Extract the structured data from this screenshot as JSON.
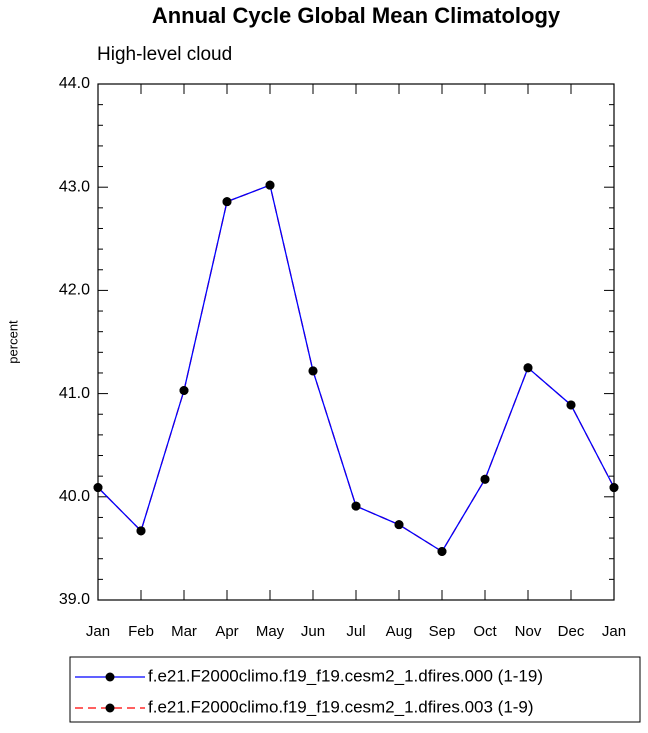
{
  "chart_data": {
    "type": "line",
    "title": "Annual Cycle Global Mean Climatology",
    "subtitle": "High-level cloud",
    "ylabel": "percent",
    "categories": [
      "Jan",
      "Feb",
      "Mar",
      "Apr",
      "May",
      "Jun",
      "Jul",
      "Aug",
      "Sep",
      "Oct",
      "Nov",
      "Dec",
      "Jan"
    ],
    "series": [
      {
        "name": "f.e21.F2000climo.f19_f19.cesm2_1.dfires.000 (1-19)",
        "color": "#0000ff",
        "line_style": "solid",
        "marker_color": "#000000",
        "values": [
          40.09,
          39.67,
          41.03,
          42.86,
          43.02,
          41.22,
          39.91,
          39.73,
          39.47,
          40.17,
          41.25,
          40.89,
          40.09
        ]
      },
      {
        "name": "f.e21.F2000climo.f19_f19.cesm2_1.dfires.003 (1-9)",
        "color": "#ff0000",
        "line_style": "dashed",
        "marker_color": "#000000",
        "values": [
          40.09,
          39.67,
          41.03,
          42.86,
          43.02,
          41.22,
          39.91,
          39.73,
          39.47,
          40.17,
          41.25,
          40.89,
          40.09
        ]
      }
    ],
    "ylim": [
      39,
      44
    ],
    "yticks": [
      {
        "value": 39,
        "label": "39.0"
      },
      {
        "value": 40,
        "label": "40.0"
      },
      {
        "value": 41,
        "label": "41.0"
      },
      {
        "value": 42,
        "label": "42.0"
      },
      {
        "value": 43,
        "label": "43.0"
      },
      {
        "value": 44,
        "label": "44.0"
      }
    ],
    "grid": false
  }
}
